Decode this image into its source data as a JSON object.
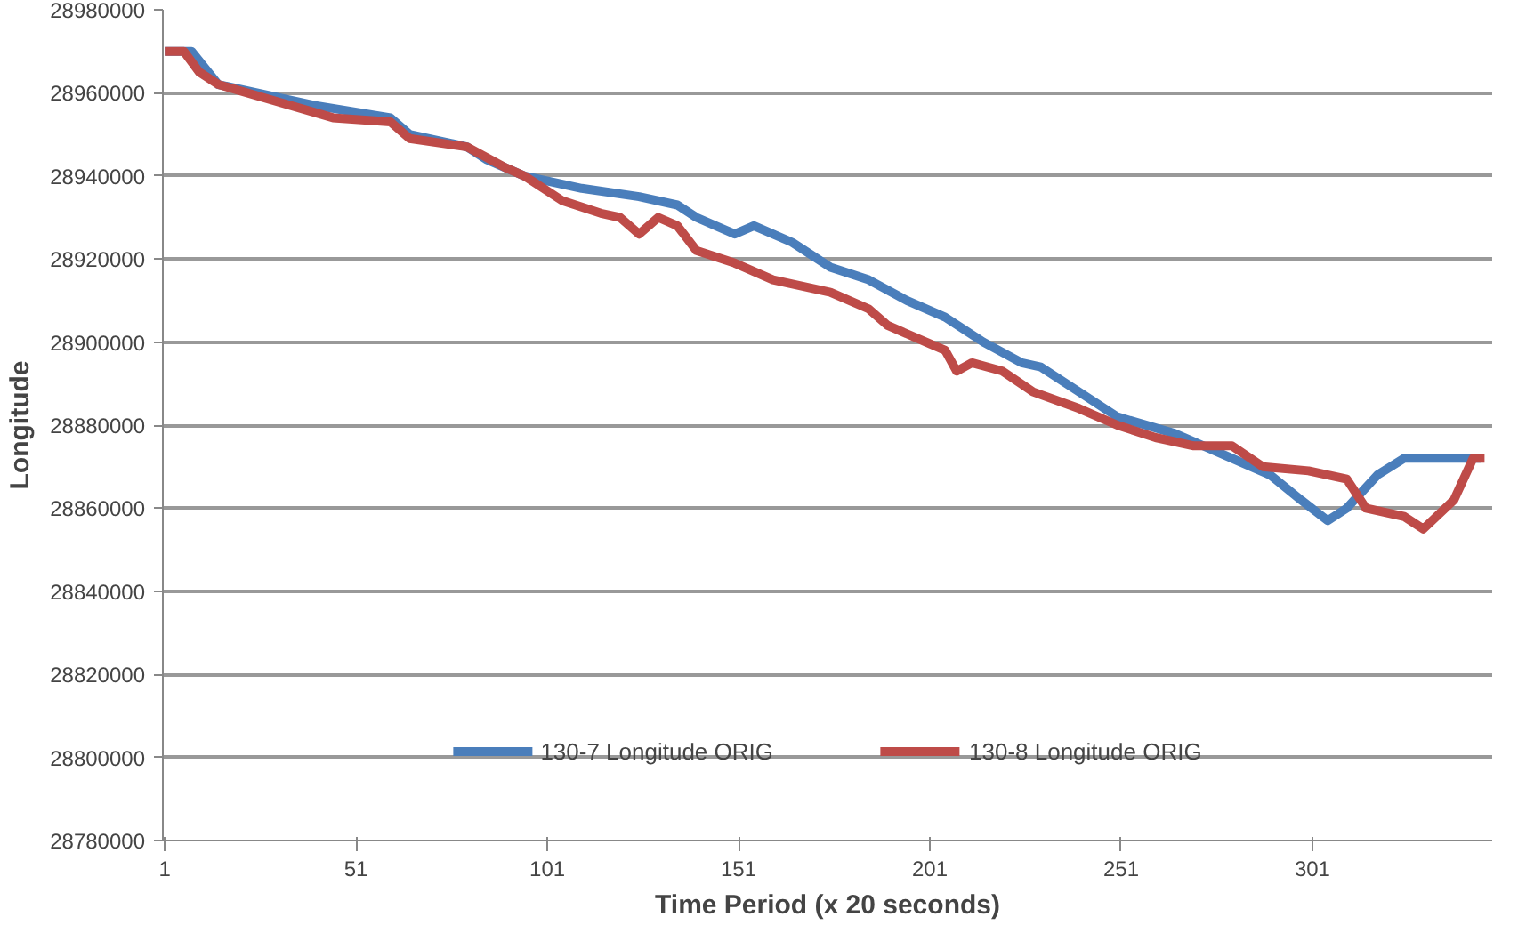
{
  "chart_data": {
    "type": "line",
    "xlabel": "Time Period (x 20 seconds)",
    "ylabel": "Longitude",
    "xlim": [
      0.5,
      348
    ],
    "xticks": [
      1,
      51,
      101,
      151,
      201,
      251,
      301
    ],
    "ylim": [
      28780000,
      28980000
    ],
    "yticks": [
      28780000,
      28800000,
      28820000,
      28840000,
      28860000,
      28880000,
      28900000,
      28920000,
      28940000,
      28960000,
      28980000
    ],
    "grid": "y",
    "legend": "bottom",
    "marker": "none",
    "line_style": "solid",
    "series": [
      {
        "name": "130-7 Longitude ORIG",
        "color": "#4a7ebb",
        "x": [
          1,
          8,
          15,
          40,
          60,
          65,
          80,
          85,
          95,
          110,
          125,
          135,
          140,
          150,
          155,
          165,
          175,
          185,
          195,
          205,
          215,
          225,
          230,
          240,
          250,
          265,
          280,
          290,
          298,
          305,
          310,
          318,
          325,
          345
        ],
        "values": [
          28970000,
          28970000,
          28962000,
          28957000,
          28954000,
          28950000,
          28947000,
          28944000,
          28940000,
          28937000,
          28935000,
          28933000,
          28930000,
          28926000,
          28928000,
          28924000,
          28918000,
          28915000,
          28910000,
          28906000,
          28900000,
          28895000,
          28894000,
          28888000,
          28882000,
          28878000,
          28872000,
          28868000,
          28862000,
          28857000,
          28860000,
          28868000,
          28872000,
          28872000
        ]
      },
      {
        "name": "130-8 Longitude ORIG",
        "color": "#be4b48",
        "x": [
          1,
          6,
          10,
          15,
          30,
          45,
          60,
          65,
          80,
          90,
          95,
          105,
          115,
          120,
          125,
          130,
          135,
          140,
          150,
          160,
          175,
          185,
          190,
          200,
          205,
          208,
          212,
          220,
          228,
          240,
          250,
          260,
          270,
          280,
          288,
          300,
          310,
          315,
          325,
          330,
          338,
          343,
          346
        ],
        "values": [
          28970000,
          28970000,
          28965000,
          28962000,
          28958000,
          28954000,
          28953000,
          28949000,
          28947000,
          28942000,
          28940000,
          28934000,
          28931000,
          28930000,
          28926000,
          28930000,
          28928000,
          28922000,
          28919000,
          28915000,
          28912000,
          28908000,
          28904000,
          28900000,
          28898000,
          28893000,
          28895000,
          28893000,
          28888000,
          28884000,
          28880000,
          28877000,
          28875000,
          28875000,
          28870000,
          28869000,
          28867000,
          28860000,
          28858000,
          28855000,
          28862000,
          28872000,
          28872000
        ]
      }
    ]
  }
}
